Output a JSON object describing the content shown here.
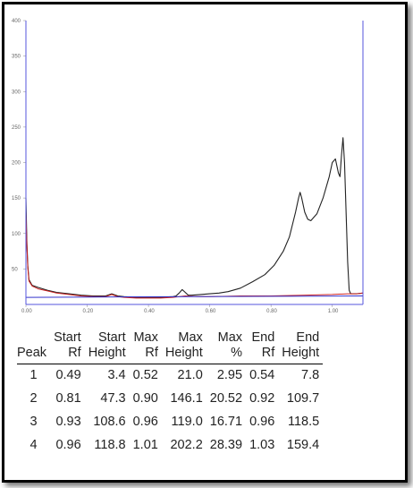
{
  "chart_data": {
    "type": "line",
    "xlim": [
      0.0,
      1.1
    ],
    "ylim": [
      0,
      400
    ],
    "x_ticks": [
      "0.00",
      "0.20",
      "0.40",
      "0.60",
      "0.80",
      "1.00"
    ],
    "y_ticks": [
      "400",
      "350",
      "300",
      "250",
      "200",
      "150",
      "100",
      "50"
    ],
    "series": [
      {
        "color": "#222222",
        "x": [
          0.0,
          0.003,
          0.006,
          0.01,
          0.02,
          0.04,
          0.07,
          0.1,
          0.14,
          0.18,
          0.22,
          0.26,
          0.28,
          0.3,
          0.32,
          0.36,
          0.4,
          0.44,
          0.48,
          0.49,
          0.5,
          0.51,
          0.52,
          0.53,
          0.54,
          0.57,
          0.6,
          0.63,
          0.66,
          0.7,
          0.74,
          0.78,
          0.81,
          0.84,
          0.86,
          0.88,
          0.89,
          0.895,
          0.9,
          0.91,
          0.92,
          0.93,
          0.95,
          0.97,
          0.99,
          1.0,
          1.01,
          1.02,
          1.025,
          1.03,
          1.035,
          1.04,
          1.05,
          1.055,
          1.06,
          1.08,
          1.1
        ],
        "y": [
          150,
          90,
          55,
          35,
          27,
          24,
          20,
          17,
          15,
          13,
          12,
          12,
          15,
          12,
          11,
          10,
          10,
          10,
          11,
          12,
          16,
          21,
          17,
          13,
          13,
          14,
          15,
          16,
          18,
          23,
          32,
          42,
          55,
          75,
          95,
          130,
          150,
          158,
          150,
          130,
          120,
          118,
          128,
          150,
          180,
          200,
          205,
          185,
          180,
          210,
          235,
          200,
          60,
          20,
          15,
          15,
          16
        ]
      },
      {
        "color": "#cc2222",
        "x": [
          0.0,
          0.003,
          0.006,
          0.01,
          0.02,
          0.04,
          0.07,
          0.1,
          0.14,
          0.18,
          0.22,
          0.26,
          0.28,
          0.3,
          0.32,
          0.36,
          0.4,
          0.44,
          0.48,
          0.52,
          0.56,
          0.6,
          0.7,
          0.8,
          0.9,
          1.0,
          1.05,
          1.08,
          1.1
        ],
        "y": [
          130,
          85,
          52,
          33,
          26,
          22,
          19,
          16,
          14,
          12,
          11,
          11,
          14,
          11,
          10,
          9,
          9,
          9,
          10,
          12,
          11,
          11,
          12,
          12,
          13,
          14,
          15,
          15,
          16
        ]
      },
      {
        "color": "#3333cc",
        "x": [
          0.0,
          1.1
        ],
        "y": [
          10,
          12
        ]
      }
    ]
  },
  "table": {
    "headers": [
      {
        "top": "",
        "bottom": "Peak"
      },
      {
        "top": "Start",
        "bottom": "Rf"
      },
      {
        "top": "Start",
        "bottom": "Height"
      },
      {
        "top": "Max",
        "bottom": "Rf"
      },
      {
        "top": "Max",
        "bottom": "Height"
      },
      {
        "top": "Max",
        "bottom": "%"
      },
      {
        "top": "End",
        "bottom": "Rf"
      },
      {
        "top": "End",
        "bottom": "Height"
      }
    ],
    "rows": [
      [
        "1",
        "0.49",
        "3.4",
        "0.52",
        "21.0",
        "2.95",
        "0.54",
        "7.8"
      ],
      [
        "2",
        "0.81",
        "47.3",
        "0.90",
        "146.1",
        "20.52",
        "0.92",
        "109.7"
      ],
      [
        "3",
        "0.93",
        "108.6",
        "0.96",
        "119.0",
        "16.71",
        "0.96",
        "118.5"
      ],
      [
        "4",
        "0.96",
        "118.8",
        "1.01",
        "202.2",
        "28.39",
        "1.03",
        "159.4"
      ]
    ]
  }
}
